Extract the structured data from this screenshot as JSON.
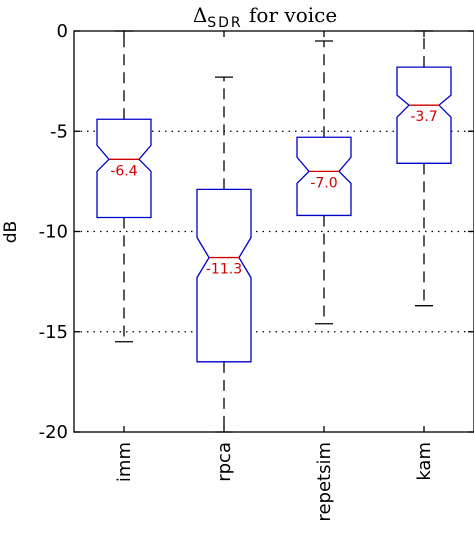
{
  "chart_data": {
    "type": "boxplot",
    "title_symbol": "Δ",
    "title_subscript": "SDR",
    "title_suffix": " for voice",
    "ylabel": "dB",
    "ylim": [
      -20,
      0
    ],
    "yticks": [
      0,
      -5,
      -10,
      -15,
      -20
    ],
    "ytick_labels": [
      "0",
      "-5",
      "-10",
      "-15",
      "-20"
    ],
    "grid_y": [
      -5,
      -10,
      -15
    ],
    "categories": [
      "imm",
      "rpca",
      "repetsim",
      "kam"
    ],
    "boxes": [
      {
        "name": "imm",
        "whisker_low": -15.5,
        "q1": -9.3,
        "median": -6.4,
        "q3": -4.4,
        "whisker_high": 0,
        "notch_low": -7.0,
        "notch_high": -5.7,
        "median_label": "-6.4"
      },
      {
        "name": "rpca",
        "whisker_low": -20,
        "q1": -16.5,
        "median": -11.3,
        "q3": -7.9,
        "whisker_high": -2.3,
        "notch_low": -12.3,
        "notch_high": -10.3,
        "median_label": "-11.3"
      },
      {
        "name": "repetsim",
        "whisker_low": -14.6,
        "q1": -9.2,
        "median": -7.0,
        "q3": -5.3,
        "whisker_high": -0.5,
        "notch_low": -7.6,
        "notch_high": -6.3,
        "median_label": "-7.0"
      },
      {
        "name": "kam",
        "whisker_low": -13.7,
        "q1": -6.6,
        "median": -3.7,
        "q3": -1.8,
        "whisker_high": 0,
        "notch_low": -4.3,
        "notch_high": -3.2,
        "median_label": "-3.7"
      }
    ],
    "colors": {
      "box": "#0000cc",
      "median": "#d00000",
      "whisker": "#000000",
      "grid": "#000000"
    }
  }
}
